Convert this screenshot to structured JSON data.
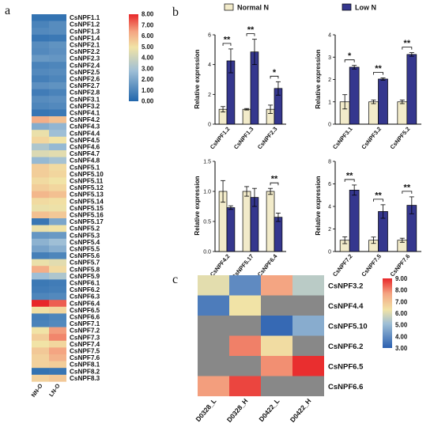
{
  "chart_data": [
    {
      "type": "heatmap",
      "panel": "a",
      "columns": [
        "NN-O",
        "LN-O"
      ],
      "rows": [
        "CsNPF1.1",
        "CsNPF1.2",
        "CsNPF1.3",
        "CsNPF1.4",
        "CsNPF2.1",
        "CsNPF2.2",
        "CsNPF2.3",
        "CsNPF2.4",
        "CsNPF2.5",
        "CsNPF2.6",
        "CsNPF2.7",
        "CsNPF2.8",
        "CsNPF3.1",
        "CsNPF3.2",
        "CsNPF4.1",
        "CsNPF4.2",
        "CsNPF4.3",
        "CsNPF4.4",
        "CsNPF4.5",
        "CsNPF4.6",
        "CsNPF4.7",
        "CsNPF4.8",
        "CsNPF5.1",
        "CsNPF5.10",
        "CsNPF5.11",
        "CsNPF5.12",
        "CsNPF5.13",
        "CsNPF5.14",
        "CsNPF5.15",
        "CsNPF5.16",
        "CsNPF5.17",
        "CsNPF5.2",
        "CsNPF5.3",
        "CsNPF5.4",
        "CsNPF5.5",
        "CsNPF5.6",
        "CsNPF5.7",
        "CsNPF5.8",
        "CsNPF5.9",
        "CsNPF6.1",
        "CsNPF6.2",
        "CsNPF6.3",
        "CsNPF6.4",
        "CsNPF6.5",
        "CsNPF6.6",
        "CsNPF7.1",
        "CsNPF7.2",
        "CsNPF7.3",
        "CsNPF7.4",
        "CsNPF7.5",
        "CsNPF7.6",
        "CsNPF8.1",
        "CsNPF8.2",
        "CsNPF8.3"
      ],
      "values": [
        [
          0.4,
          0.4
        ],
        [
          0.9,
          1.2
        ],
        [
          1.1,
          1.2
        ],
        [
          0.5,
          0.6
        ],
        [
          1.2,
          1.4
        ],
        [
          1.1,
          1.3
        ],
        [
          1.6,
          1.5
        ],
        [
          0.9,
          1.0
        ],
        [
          1.1,
          1.2
        ],
        [
          0.8,
          1.0
        ],
        [
          1.3,
          1.4
        ],
        [
          0.7,
          0.9
        ],
        [
          1.2,
          1.3
        ],
        [
          1.0,
          1.1
        ],
        [
          0.5,
          0.6
        ],
        [
          6.2,
          5.8
        ],
        [
          2.2,
          2.5
        ],
        [
          4.8,
          2.8
        ],
        [
          5.3,
          5.0
        ],
        [
          3.2,
          2.6
        ],
        [
          4.4,
          4.6
        ],
        [
          2.6,
          3.0
        ],
        [
          5.5,
          5.2
        ],
        [
          5.5,
          5.3
        ],
        [
          5.2,
          5.0
        ],
        [
          5.5,
          5.3
        ],
        [
          6.0,
          5.8
        ],
        [
          5.2,
          5.1
        ],
        [
          4.8,
          4.9
        ],
        [
          5.8,
          5.6
        ],
        [
          0.5,
          2.0
        ],
        [
          4.8,
          5.0
        ],
        [
          1.5,
          1.6
        ],
        [
          2.4,
          2.8
        ],
        [
          1.9,
          2.3
        ],
        [
          0.8,
          1.0
        ],
        [
          4.8,
          4.6
        ],
        [
          6.2,
          5.2
        ],
        [
          2.8,
          3.2
        ],
        [
          0.6,
          0.7
        ],
        [
          0.7,
          0.8
        ],
        [
          1.0,
          1.1
        ],
        [
          8.0,
          7.3
        ],
        [
          5.1,
          5.3
        ],
        [
          0.8,
          1.0
        ],
        [
          0.9,
          1.1
        ],
        [
          5.0,
          6.5
        ],
        [
          5.5,
          6.8
        ],
        [
          5.0,
          5.3
        ],
        [
          5.6,
          6.4
        ],
        [
          5.4,
          6.1
        ],
        [
          5.4,
          5.5
        ],
        [
          0.4,
          0.5
        ],
        [
          5.4,
          5.6
        ]
      ],
      "colorbar": {
        "min": 0.0,
        "max": 8.0,
        "ticks": [
          "0.00",
          "1.00",
          "2.00",
          "3.00",
          "4.00",
          "5.00",
          "6.00",
          "7.00",
          "8.00"
        ]
      },
      "colors": {
        "low": "#2166ac",
        "mid": "#f1e3a6",
        "high": "#e8272a",
        "missing": "#888888"
      }
    },
    {
      "type": "bar",
      "panel": "b",
      "legend": [
        "Normal N",
        "Low N"
      ],
      "legend_position": "top",
      "colors": {
        "normal": "#f2ebca",
        "low": "#35378e"
      },
      "ylabel": "Relative expression",
      "subplots": [
        {
          "categories": [
            "CsNPF1.2",
            "CsNPF1.3",
            "CsNPF2.3"
          ],
          "normal": [
            1.0,
            1.0,
            1.0
          ],
          "normal_err": [
            0.18,
            0.05,
            0.28
          ],
          "low": [
            4.25,
            4.85,
            2.4
          ],
          "low_err": [
            0.8,
            0.85,
            0.45
          ],
          "sig": [
            "**",
            "**",
            "*"
          ],
          "ylim": [
            0,
            6
          ],
          "yticks": [
            "0",
            "2",
            "4",
            "6"
          ]
        },
        {
          "categories": [
            "CsNPF3.1",
            "CsNPF3.2",
            "CsNPF5.2"
          ],
          "normal": [
            1.0,
            1.0,
            1.0
          ],
          "normal_err": [
            0.32,
            0.08,
            0.08
          ],
          "low": [
            2.55,
            2.02,
            3.12
          ],
          "low_err": [
            0.08,
            0.05,
            0.08
          ],
          "sig": [
            "*",
            "**",
            "**"
          ],
          "ylim": [
            0,
            4
          ],
          "yticks": [
            "0",
            "1",
            "2",
            "3",
            "4"
          ]
        },
        {
          "categories": [
            "CsNPF4.2",
            "CsNPF5.17",
            "CsNPF6.4"
          ],
          "normal": [
            1.0,
            1.0,
            1.0
          ],
          "normal_err": [
            0.18,
            0.08,
            0.05
          ],
          "low": [
            0.73,
            0.9,
            0.57
          ],
          "low_err": [
            0.03,
            0.15,
            0.07
          ],
          "sig": [
            "",
            "",
            "**"
          ],
          "ylim": [
            0,
            1.5
          ],
          "yticks": [
            "0.0",
            "0.5",
            "1.0",
            "1.5"
          ]
        },
        {
          "categories": [
            "CsNPF7.2",
            "CsNPF7.5",
            "CsNPF7.6"
          ],
          "normal": [
            1.0,
            1.0,
            1.0
          ],
          "normal_err": [
            0.3,
            0.28,
            0.18
          ],
          "low": [
            5.45,
            3.55,
            4.1
          ],
          "low_err": [
            0.45,
            0.6,
            0.75
          ],
          "sig": [
            "**",
            "**",
            "**"
          ],
          "ylim": [
            0,
            8
          ],
          "yticks": [
            "0",
            "2",
            "4",
            "6",
            "8"
          ]
        }
      ]
    },
    {
      "type": "heatmap",
      "panel": "c",
      "columns": [
        "D0328_L",
        "D0328_H",
        "D0422_L",
        "D0422_H"
      ],
      "rows": [
        "CsNPF3.2",
        "CsNPF4.4",
        "CsNPF5.10",
        "CsNPF6.2",
        "CsNPF6.5",
        "CsNPF6.6"
      ],
      "values": [
        [
          5.5,
          3.9,
          7.3,
          5.2
        ],
        [
          3.6,
          5.6,
          null,
          null
        ],
        [
          null,
          null,
          3.2,
          4.6
        ],
        [
          null,
          7.8,
          5.8,
          null
        ],
        [
          null,
          null,
          7.6,
          8.9
        ],
        [
          7.4,
          8.6,
          null,
          null
        ]
      ],
      "colorbar": {
        "min": 3.0,
        "max": 9.0,
        "ticks": [
          "9.00",
          "8.00",
          "7.00",
          "6.00",
          "5.00",
          "4.00",
          "3.00"
        ]
      },
      "colors": {
        "low": "#2a5fb0",
        "mid": "#f1e3a6",
        "high": "#e8272a",
        "missing": "#888888"
      }
    }
  ],
  "panel_labels": {
    "a": "a",
    "b": "b",
    "c": "c"
  }
}
